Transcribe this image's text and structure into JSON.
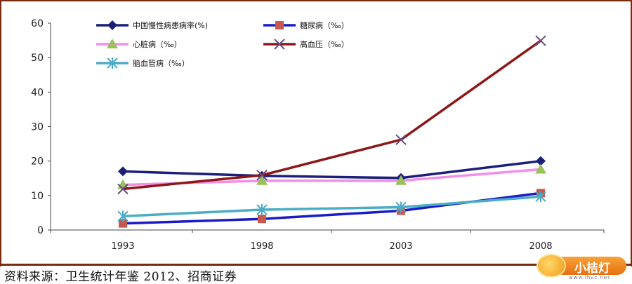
{
  "chart_data": {
    "type": "line",
    "categories": [
      "1993",
      "1998",
      "2003",
      "2008"
    ],
    "ylim": [
      0,
      60
    ],
    "yticks": [
      "0",
      "10",
      "20",
      "30",
      "40",
      "50",
      "60"
    ],
    "grid": false,
    "legend_placement": "top-left",
    "series": [
      {
        "name": "中国慢性病患病率(%)",
        "color": "#1c1f7a",
        "marker": "diamond",
        "values": [
          17.0,
          15.7,
          15.1,
          20.0
        ]
      },
      {
        "name": "糖尿病（‰）",
        "color": "#1a1ac8",
        "marker": "square",
        "marker_color": "#c8584f",
        "values": [
          1.9,
          3.2,
          5.6,
          10.7
        ]
      },
      {
        "name": "心脏病（‰）",
        "color": "#f28ee8",
        "marker": "triangle",
        "marker_color": "#99c25a",
        "values": [
          13.1,
          14.3,
          14.3,
          17.6
        ]
      },
      {
        "name": "高血压（‰）",
        "color": "#8c1717",
        "marker": "x",
        "marker_color": "#6a4d80",
        "values": [
          11.9,
          15.9,
          26.2,
          54.9
        ]
      },
      {
        "name": "脑血管病（‰）",
        "color": "#4bacc6",
        "marker": "asterisk",
        "marker_color": "#4bacc6",
        "values": [
          4.0,
          5.9,
          6.6,
          9.7
        ]
      }
    ]
  },
  "source": "资料来源：卫生统计年鉴 2012、招商证券",
  "logo": {
    "text": "小桔灯",
    "sub": "www.lhvc.net"
  }
}
